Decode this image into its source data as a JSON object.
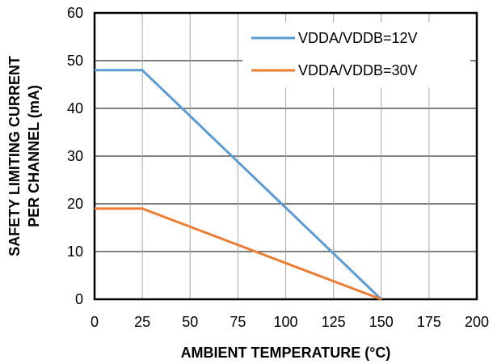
{
  "chart_data": {
    "type": "line",
    "title": "",
    "xlabel": "AMBIENT TEMPERATURE (°C)",
    "ylabel_lines": [
      "SAFETY LIMITING CURRENT",
      "PER CHANNEL (mA)"
    ],
    "xlim": [
      0,
      200
    ],
    "ylim": [
      0,
      60
    ],
    "xticks": [
      0,
      25,
      50,
      75,
      100,
      125,
      150,
      175,
      200
    ],
    "yticks": [
      0,
      10,
      20,
      30,
      40,
      50,
      60
    ],
    "grid": true,
    "legend_position": "top-right",
    "series": [
      {
        "name": "VDDA/VDDB=12V",
        "color": "#5b9bd5",
        "x": [
          0,
          25,
          150
        ],
        "y": [
          48,
          48,
          0
        ]
      },
      {
        "name": "VDDA/VDDB=30V",
        "color": "#ed7d31",
        "x": [
          0,
          25,
          150
        ],
        "y": [
          19,
          19,
          0
        ]
      }
    ]
  }
}
